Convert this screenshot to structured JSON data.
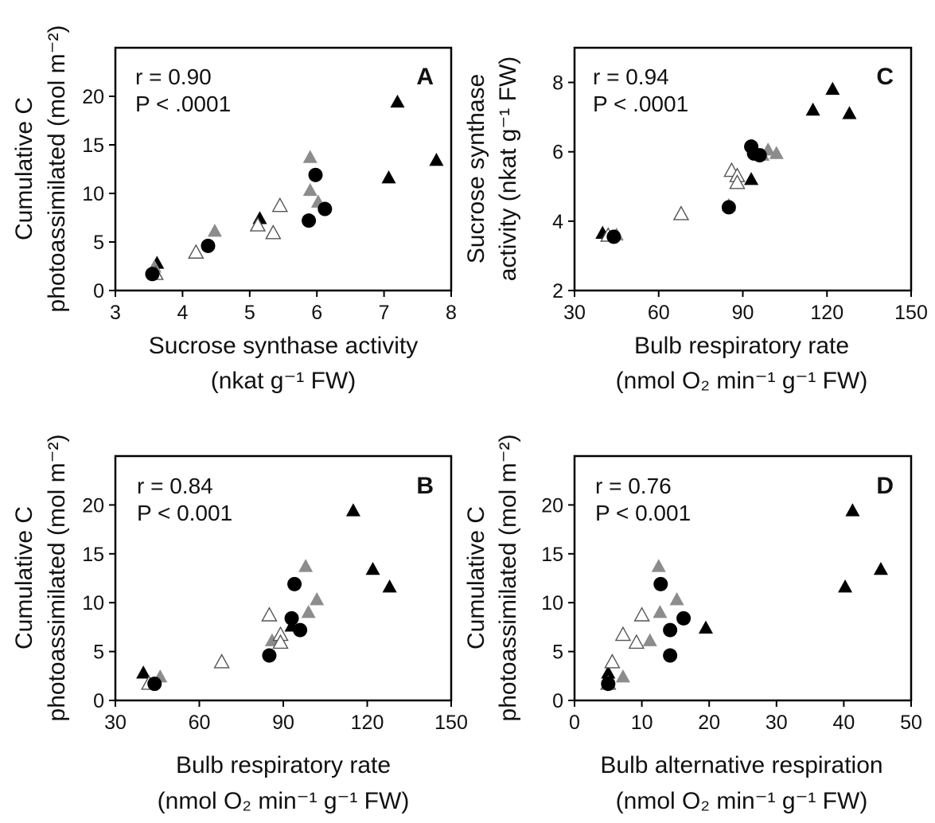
{
  "colors": {
    "black": "#000000",
    "gray": "#8c8c8c",
    "open_stroke": "#555555",
    "open_fill": "#ffffff"
  },
  "chart_data": [
    {
      "panel": "A",
      "type": "scatter",
      "stat_r": "r = 0.90",
      "stat_p": "P < .0001",
      "ylabel_line1": "Cumulative C",
      "ylabel_line2": "photoassimilated (mol m⁻²)",
      "xlabel_line1": "Sucrose synthase activity",
      "xlabel_line2": "(nkat g⁻¹ FW)",
      "xlim": [
        3,
        8
      ],
      "ylim": [
        0,
        25
      ],
      "xticks": [
        3,
        4,
        5,
        6,
        7,
        8
      ],
      "yticks": [
        0,
        5,
        10,
        15,
        20
      ],
      "grid": false,
      "series": [
        {
          "marker": "filled-triangle",
          "color": "black",
          "points": [
            [
              7.2,
              19.4
            ],
            [
              7.78,
              13.4
            ],
            [
              7.07,
              11.6
            ],
            [
              5.15,
              7.4
            ],
            [
              3.62,
              2.8
            ]
          ]
        },
        {
          "marker": "filled-triangle",
          "color": "gray",
          "points": [
            [
              5.9,
              13.7
            ],
            [
              5.9,
              10.3
            ],
            [
              6.02,
              9.1
            ],
            [
              4.48,
              6.1
            ],
            [
              3.58,
              2.4
            ]
          ]
        },
        {
          "marker": "open-triangle",
          "color": "open",
          "points": [
            [
              5.45,
              8.7
            ],
            [
              5.12,
              6.7
            ],
            [
              5.35,
              5.9
            ],
            [
              4.2,
              3.9
            ],
            [
              3.6,
              1.7
            ]
          ]
        },
        {
          "marker": "circle",
          "color": "black",
          "points": [
            [
              5.98,
              11.9
            ],
            [
              6.12,
              8.4
            ],
            [
              5.88,
              7.2
            ],
            [
              4.38,
              4.6
            ],
            [
              3.55,
              1.7
            ]
          ]
        }
      ]
    },
    {
      "panel": "C",
      "type": "scatter",
      "stat_r": "r = 0.94",
      "stat_p": "P < .0001",
      "ylabel_line1": "Sucrose synthase",
      "ylabel_line2": "activity (nkat g⁻¹ FW)",
      "xlabel_line1": "Bulb respiratory rate",
      "xlabel_line2": "(nmol O₂ min⁻¹ g⁻¹ FW)",
      "xlim": [
        30,
        150
      ],
      "ylim": [
        2,
        9
      ],
      "xticks": [
        30,
        60,
        90,
        120,
        150
      ],
      "yticks": [
        2,
        4,
        6,
        8
      ],
      "grid": false,
      "series": [
        {
          "marker": "filled-triangle",
          "color": "black",
          "points": [
            [
              122,
              7.8
            ],
            [
              115,
              7.2
            ],
            [
              128,
              7.1
            ],
            [
              93,
              5.2
            ],
            [
              40,
              3.65
            ]
          ]
        },
        {
          "marker": "filled-triangle",
          "color": "gray",
          "points": [
            [
              99,
              6.05
            ],
            [
              102,
              5.95
            ],
            [
              97,
              5.9
            ],
            [
              85,
              4.45
            ],
            [
              45,
              3.6
            ]
          ]
        },
        {
          "marker": "open-triangle",
          "color": "open",
          "points": [
            [
              86,
              5.45
            ],
            [
              88,
              5.3
            ],
            [
              88,
              5.1
            ],
            [
              68,
              4.2
            ],
            [
              42,
              3.58
            ]
          ]
        },
        {
          "marker": "circle",
          "color": "black",
          "points": [
            [
              93,
              6.15
            ],
            [
              94,
              5.95
            ],
            [
              96,
              5.9
            ],
            [
              85,
              4.4
            ],
            [
              44,
              3.55
            ]
          ]
        }
      ]
    },
    {
      "panel": "B",
      "type": "scatter",
      "stat_r": "r = 0.84",
      "stat_p": "P < 0.001",
      "ylabel_line1": "Cumulative C",
      "ylabel_line2": "photoassimilated (mol m⁻²)",
      "xlabel_line1": "Bulb respiratory rate",
      "xlabel_line2": "(nmol O₂ min⁻¹ g⁻¹ FW)",
      "xlim": [
        30,
        150
      ],
      "ylim": [
        0,
        25
      ],
      "xticks": [
        30,
        60,
        90,
        120,
        150
      ],
      "yticks": [
        0,
        5,
        10,
        15,
        20
      ],
      "grid": false,
      "series": [
        {
          "marker": "filled-triangle",
          "color": "black",
          "points": [
            [
              115,
              19.4
            ],
            [
              122,
              13.4
            ],
            [
              128,
              11.6
            ],
            [
              93,
              7.6
            ],
            [
              40,
              2.8
            ]
          ]
        },
        {
          "marker": "filled-triangle",
          "color": "gray",
          "points": [
            [
              98,
              13.7
            ],
            [
              102,
              10.3
            ],
            [
              99,
              9.0
            ],
            [
              86,
              6.1
            ],
            [
              46,
              2.4
            ]
          ]
        },
        {
          "marker": "open-triangle",
          "color": "open",
          "points": [
            [
              85,
              8.7
            ],
            [
              89,
              6.7
            ],
            [
              89,
              5.9
            ],
            [
              68,
              3.9
            ],
            [
              42,
              1.7
            ]
          ]
        },
        {
          "marker": "circle",
          "color": "black",
          "points": [
            [
              94,
              11.9
            ],
            [
              93,
              8.4
            ],
            [
              96,
              7.2
            ],
            [
              85,
              4.6
            ],
            [
              44,
              1.7
            ]
          ]
        }
      ]
    },
    {
      "panel": "D",
      "type": "scatter",
      "stat_r": "r = 0.76",
      "stat_p": "P < 0.001",
      "ylabel_line1": "Cumulative C",
      "ylabel_line2": "photoassimilated (mol m⁻²)",
      "xlabel_line1": "Bulb alternative respiration",
      "xlabel_line2": "(nmol O₂ min⁻¹ g⁻¹ FW)",
      "xlim": [
        0,
        50
      ],
      "ylim": [
        0,
        25
      ],
      "xticks": [
        0,
        10,
        20,
        30,
        40,
        50
      ],
      "yticks": [
        0,
        5,
        10,
        15,
        20
      ],
      "grid": false,
      "series": [
        {
          "marker": "filled-triangle",
          "color": "black",
          "points": [
            [
              41.3,
              19.4
            ],
            [
              45.5,
              13.4
            ],
            [
              40.2,
              11.6
            ],
            [
              19.5,
              7.4
            ],
            [
              5.0,
              2.8
            ]
          ]
        },
        {
          "marker": "filled-triangle",
          "color": "gray",
          "points": [
            [
              12.5,
              13.7
            ],
            [
              15.2,
              10.3
            ],
            [
              12.7,
              9.0
            ],
            [
              11.2,
              6.1
            ],
            [
              7.2,
              2.4
            ]
          ]
        },
        {
          "marker": "open-triangle",
          "color": "open",
          "points": [
            [
              10.0,
              8.7
            ],
            [
              7.2,
              6.7
            ],
            [
              9.2,
              5.9
            ],
            [
              5.6,
              3.9
            ],
            [
              5.0,
              1.7
            ]
          ]
        },
        {
          "marker": "circle",
          "color": "black",
          "points": [
            [
              12.8,
              11.9
            ],
            [
              16.2,
              8.4
            ],
            [
              14.2,
              7.2
            ],
            [
              14.2,
              4.6
            ],
            [
              5.0,
              1.7
            ]
          ]
        }
      ]
    }
  ]
}
